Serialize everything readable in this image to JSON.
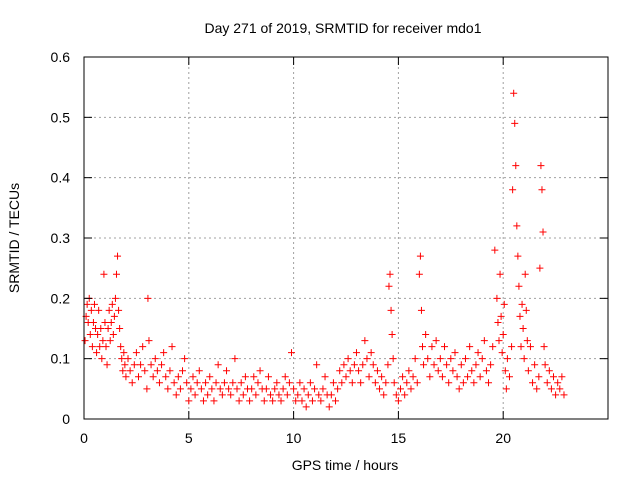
{
  "chart_data": {
    "type": "scatter",
    "title": "Day 271 of 2019, SRMTID for receiver mdo1",
    "xlabel": "GPS time / hours",
    "ylabel": "SRMTID / TECUs",
    "xlim": [
      0,
      25
    ],
    "ylim": [
      0,
      0.6
    ],
    "xticks": [
      0,
      5,
      10,
      15,
      20
    ],
    "xtick_labels": [
      "0",
      "5",
      "10",
      "15",
      "20"
    ],
    "yticks": [
      0,
      0.1,
      0.2,
      0.3,
      0.4,
      0.5,
      0.6
    ],
    "ytick_labels": [
      "0",
      "0.1",
      "0.2",
      "0.3",
      "0.4",
      "0.5",
      "0.6"
    ],
    "grid": true,
    "marker": "+",
    "color": "#ff0000",
    "series": [
      {
        "name": "mdo1",
        "points": [
          [
            0.05,
            0.13
          ],
          [
            0.1,
            0.17
          ],
          [
            0.15,
            0.19
          ],
          [
            0.2,
            0.16
          ],
          [
            0.25,
            0.2
          ],
          [
            0.3,
            0.14
          ],
          [
            0.35,
            0.18
          ],
          [
            0.4,
            0.12
          ],
          [
            0.45,
            0.16
          ],
          [
            0.5,
            0.19
          ],
          [
            0.55,
            0.15
          ],
          [
            0.6,
            0.11
          ],
          [
            0.65,
            0.14
          ],
          [
            0.7,
            0.18
          ],
          [
            0.75,
            0.12
          ],
          [
            0.8,
            0.15
          ],
          [
            0.85,
            0.1
          ],
          [
            0.9,
            0.13
          ],
          [
            0.95,
            0.24
          ],
          [
            1.0,
            0.16
          ],
          [
            1.05,
            0.12
          ],
          [
            1.1,
            0.09
          ],
          [
            1.15,
            0.15
          ],
          [
            1.2,
            0.18
          ],
          [
            1.25,
            0.13
          ],
          [
            1.3,
            0.16
          ],
          [
            1.35,
            0.19
          ],
          [
            1.4,
            0.14
          ],
          [
            1.45,
            0.17
          ],
          [
            1.5,
            0.2
          ],
          [
            1.55,
            0.24
          ],
          [
            1.6,
            0.27
          ],
          [
            1.65,
            0.18
          ],
          [
            1.7,
            0.15
          ],
          [
            1.75,
            0.12
          ],
          [
            1.8,
            0.1
          ],
          [
            1.85,
            0.08
          ],
          [
            1.9,
            0.11
          ],
          [
            1.95,
            0.09
          ],
          [
            2.0,
            0.07
          ],
          [
            2.1,
            0.1
          ],
          [
            2.2,
            0.08
          ],
          [
            2.3,
            0.06
          ],
          [
            2.4,
            0.09
          ],
          [
            2.5,
            0.11
          ],
          [
            2.6,
            0.07
          ],
          [
            2.7,
            0.09
          ],
          [
            2.8,
            0.12
          ],
          [
            2.9,
            0.08
          ],
          [
            3.0,
            0.05
          ],
          [
            3.05,
            0.2
          ],
          [
            3.1,
            0.13
          ],
          [
            3.2,
            0.09
          ],
          [
            3.3,
            0.07
          ],
          [
            3.4,
            0.1
          ],
          [
            3.5,
            0.08
          ],
          [
            3.6,
            0.06
          ],
          [
            3.7,
            0.09
          ],
          [
            3.8,
            0.11
          ],
          [
            3.9,
            0.07
          ],
          [
            4.0,
            0.05
          ],
          [
            4.1,
            0.08
          ],
          [
            4.2,
            0.12
          ],
          [
            4.3,
            0.06
          ],
          [
            4.4,
            0.04
          ],
          [
            4.5,
            0.07
          ],
          [
            4.6,
            0.05
          ],
          [
            4.7,
            0.08
          ],
          [
            4.8,
            0.1
          ],
          [
            4.9,
            0.06
          ],
          [
            5.0,
            0.03
          ],
          [
            5.1,
            0.05
          ],
          [
            5.2,
            0.07
          ],
          [
            5.3,
            0.04
          ],
          [
            5.4,
            0.06
          ],
          [
            5.5,
            0.08
          ],
          [
            5.6,
            0.05
          ],
          [
            5.7,
            0.03
          ],
          [
            5.8,
            0.06
          ],
          [
            5.9,
            0.04
          ],
          [
            6.0,
            0.07
          ],
          [
            6.1,
            0.05
          ],
          [
            6.2,
            0.03
          ],
          [
            6.3,
            0.06
          ],
          [
            6.4,
            0.09
          ],
          [
            6.5,
            0.05
          ],
          [
            6.6,
            0.04
          ],
          [
            6.7,
            0.06
          ],
          [
            6.8,
            0.08
          ],
          [
            6.9,
            0.05
          ],
          [
            7.0,
            0.04
          ],
          [
            7.1,
            0.06
          ],
          [
            7.2,
            0.1
          ],
          [
            7.3,
            0.05
          ],
          [
            7.4,
            0.03
          ],
          [
            7.5,
            0.06
          ],
          [
            7.6,
            0.04
          ],
          [
            7.7,
            0.07
          ],
          [
            7.8,
            0.05
          ],
          [
            7.9,
            0.03
          ],
          [
            8.0,
            0.05
          ],
          [
            8.1,
            0.07
          ],
          [
            8.2,
            0.04
          ],
          [
            8.3,
            0.06
          ],
          [
            8.4,
            0.08
          ],
          [
            8.5,
            0.05
          ],
          [
            8.6,
            0.03
          ],
          [
            8.7,
            0.05
          ],
          [
            8.8,
            0.07
          ],
          [
            8.9,
            0.04
          ],
          [
            9.0,
            0.03
          ],
          [
            9.1,
            0.05
          ],
          [
            9.2,
            0.06
          ],
          [
            9.3,
            0.04
          ],
          [
            9.4,
            0.03
          ],
          [
            9.5,
            0.05
          ],
          [
            9.6,
            0.07
          ],
          [
            9.7,
            0.04
          ],
          [
            9.8,
            0.06
          ],
          [
            9.9,
            0.11
          ],
          [
            10.0,
            0.05
          ],
          [
            10.1,
            0.03
          ],
          [
            10.2,
            0.04
          ],
          [
            10.3,
            0.06
          ],
          [
            10.4,
            0.03
          ],
          [
            10.5,
            0.05
          ],
          [
            10.6,
            0.02
          ],
          [
            10.7,
            0.04
          ],
          [
            10.8,
            0.06
          ],
          [
            10.9,
            0.03
          ],
          [
            11.0,
            0.05
          ],
          [
            11.1,
            0.09
          ],
          [
            11.2,
            0.04
          ],
          [
            11.3,
            0.03
          ],
          [
            11.4,
            0.05
          ],
          [
            11.5,
            0.07
          ],
          [
            11.6,
            0.04
          ],
          [
            11.7,
            0.02
          ],
          [
            11.8,
            0.04
          ],
          [
            11.9,
            0.06
          ],
          [
            12.0,
            0.03
          ],
          [
            12.1,
            0.05
          ],
          [
            12.2,
            0.08
          ],
          [
            12.3,
            0.06
          ],
          [
            12.4,
            0.09
          ],
          [
            12.5,
            0.07
          ],
          [
            12.6,
            0.1
          ],
          [
            12.7,
            0.08
          ],
          [
            12.8,
            0.06
          ],
          [
            12.9,
            0.09
          ],
          [
            13.0,
            0.11
          ],
          [
            13.1,
            0.08
          ],
          [
            13.2,
            0.06
          ],
          [
            13.3,
            0.09
          ],
          [
            13.4,
            0.13
          ],
          [
            13.5,
            0.1
          ],
          [
            13.6,
            0.07
          ],
          [
            13.7,
            0.11
          ],
          [
            13.8,
            0.09
          ],
          [
            13.9,
            0.06
          ],
          [
            14.0,
            0.08
          ],
          [
            14.1,
            0.05
          ],
          [
            14.2,
            0.07
          ],
          [
            14.3,
            0.04
          ],
          [
            14.4,
            0.06
          ],
          [
            14.5,
            0.09
          ],
          [
            14.55,
            0.22
          ],
          [
            14.6,
            0.24
          ],
          [
            14.65,
            0.18
          ],
          [
            14.7,
            0.14
          ],
          [
            14.75,
            0.1
          ],
          [
            14.8,
            0.06
          ],
          [
            14.9,
            0.04
          ],
          [
            15.0,
            0.03
          ],
          [
            15.1,
            0.05
          ],
          [
            15.2,
            0.07
          ],
          [
            15.3,
            0.04
          ],
          [
            15.4,
            0.06
          ],
          [
            15.5,
            0.08
          ],
          [
            15.6,
            0.05
          ],
          [
            15.7,
            0.07
          ],
          [
            15.8,
            0.1
          ],
          [
            15.9,
            0.06
          ],
          [
            16.0,
            0.24
          ],
          [
            16.05,
            0.27
          ],
          [
            16.1,
            0.18
          ],
          [
            16.15,
            0.12
          ],
          [
            16.2,
            0.09
          ],
          [
            16.3,
            0.14
          ],
          [
            16.4,
            0.1
          ],
          [
            16.5,
            0.07
          ],
          [
            16.6,
            0.12
          ],
          [
            16.7,
            0.09
          ],
          [
            16.8,
            0.13
          ],
          [
            16.9,
            0.08
          ],
          [
            17.0,
            0.1
          ],
          [
            17.1,
            0.07
          ],
          [
            17.2,
            0.12
          ],
          [
            17.3,
            0.09
          ],
          [
            17.4,
            0.06
          ],
          [
            17.5,
            0.1
          ],
          [
            17.6,
            0.08
          ],
          [
            17.7,
            0.11
          ],
          [
            17.8,
            0.07
          ],
          [
            17.9,
            0.05
          ],
          [
            18.0,
            0.09
          ],
          [
            18.1,
            0.06
          ],
          [
            18.2,
            0.1
          ],
          [
            18.3,
            0.07
          ],
          [
            18.4,
            0.12
          ],
          [
            18.5,
            0.08
          ],
          [
            18.6,
            0.06
          ],
          [
            18.7,
            0.09
          ],
          [
            18.8,
            0.11
          ],
          [
            18.9,
            0.07
          ],
          [
            19.0,
            0.1
          ],
          [
            19.1,
            0.13
          ],
          [
            19.2,
            0.08
          ],
          [
            19.3,
            0.06
          ],
          [
            19.4,
            0.09
          ],
          [
            19.5,
            0.12
          ],
          [
            19.6,
            0.28
          ],
          [
            19.7,
            0.2
          ],
          [
            19.75,
            0.16
          ],
          [
            19.8,
            0.13
          ],
          [
            19.85,
            0.24
          ],
          [
            19.9,
            0.17
          ],
          [
            19.95,
            0.11
          ],
          [
            20.0,
            0.14
          ],
          [
            20.05,
            0.19
          ],
          [
            20.1,
            0.08
          ],
          [
            20.15,
            0.05
          ],
          [
            20.2,
            0.1
          ],
          [
            20.3,
            0.07
          ],
          [
            20.4,
            0.12
          ],
          [
            20.45,
            0.38
          ],
          [
            20.5,
            0.54
          ],
          [
            20.55,
            0.49
          ],
          [
            20.6,
            0.42
          ],
          [
            20.65,
            0.32
          ],
          [
            20.7,
            0.27
          ],
          [
            20.75,
            0.22
          ],
          [
            20.8,
            0.17
          ],
          [
            20.85,
            0.12
          ],
          [
            20.9,
            0.19
          ],
          [
            20.95,
            0.15
          ],
          [
            21.0,
            0.1
          ],
          [
            21.05,
            0.24
          ],
          [
            21.1,
            0.18
          ],
          [
            21.15,
            0.13
          ],
          [
            21.2,
            0.08
          ],
          [
            21.3,
            0.12
          ],
          [
            21.4,
            0.06
          ],
          [
            21.5,
            0.09
          ],
          [
            21.6,
            0.05
          ],
          [
            21.7,
            0.07
          ],
          [
            21.75,
            0.25
          ],
          [
            21.8,
            0.42
          ],
          [
            21.85,
            0.38
          ],
          [
            21.9,
            0.31
          ],
          [
            21.95,
            0.12
          ],
          [
            22.0,
            0.09
          ],
          [
            22.1,
            0.06
          ],
          [
            22.2,
            0.08
          ],
          [
            22.3,
            0.05
          ],
          [
            22.4,
            0.07
          ],
          [
            22.5,
            0.04
          ],
          [
            22.6,
            0.06
          ],
          [
            22.7,
            0.05
          ],
          [
            22.8,
            0.07
          ],
          [
            22.9,
            0.04
          ]
        ]
      }
    ]
  }
}
